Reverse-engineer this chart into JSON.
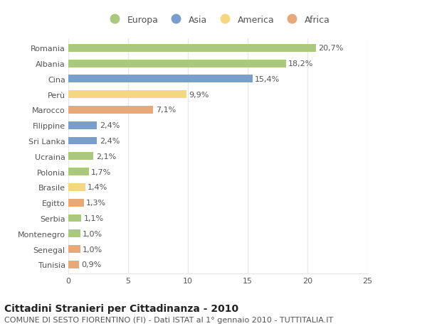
{
  "countries": [
    "Romania",
    "Albania",
    "Cina",
    "Perù",
    "Marocco",
    "Filippine",
    "Sri Lanka",
    "Ucraina",
    "Polonia",
    "Brasile",
    "Egitto",
    "Serbia",
    "Montenegro",
    "Senegal",
    "Tunisia"
  ],
  "values": [
    20.7,
    18.2,
    15.4,
    9.9,
    7.1,
    2.4,
    2.4,
    2.1,
    1.7,
    1.4,
    1.3,
    1.1,
    1.0,
    1.0,
    0.9
  ],
  "labels": [
    "20,7%",
    "18,2%",
    "15,4%",
    "9,9%",
    "7,1%",
    "2,4%",
    "2,4%",
    "2,1%",
    "1,7%",
    "1,4%",
    "1,3%",
    "1,1%",
    "1,0%",
    "1,0%",
    "0,9%"
  ],
  "continent": [
    "Europa",
    "Europa",
    "Asia",
    "America",
    "Africa",
    "Asia",
    "Asia",
    "Europa",
    "Europa",
    "America",
    "Africa",
    "Europa",
    "Europa",
    "Africa",
    "Africa"
  ],
  "colors": {
    "Europa": "#aac87e",
    "Asia": "#7a9ecc",
    "America": "#f5d782",
    "Africa": "#e8a878"
  },
  "legend_order": [
    "Europa",
    "Asia",
    "America",
    "Africa"
  ],
  "xlim": [
    0,
    25
  ],
  "xticks": [
    0,
    5,
    10,
    15,
    20,
    25
  ],
  "title": "Cittadini Stranieri per Cittadinanza - 2010",
  "subtitle": "COMUNE DI SESTO FIORENTINO (FI) - Dati ISTAT al 1° gennaio 2010 - TUTTITALIA.IT",
  "background_color": "#ffffff",
  "bar_height": 0.5,
  "grid_color": "#e8e8e8",
  "title_fontsize": 10,
  "subtitle_fontsize": 8,
  "label_fontsize": 8,
  "tick_fontsize": 8,
  "legend_fontsize": 9
}
